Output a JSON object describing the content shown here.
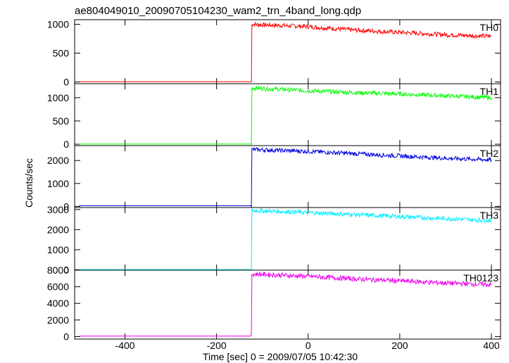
{
  "chart_data": {
    "type": "line",
    "title": "ae804049010_20090705104230_wam2_trn_4band_long.qdp",
    "xlabel": "Time [sec] 0 = 2009/07/05 10:42:30",
    "ylabel": "Counts/sec",
    "xlim": [
      -510,
      420
    ],
    "x_ticks": [
      -400,
      -200,
      0,
      200,
      400
    ],
    "grid": false,
    "panels": [
      {
        "name": "TH0",
        "color": "#ff0000",
        "ylim": [
          -30,
          1080
        ],
        "y_ticks": [
          0,
          500,
          1000
        ],
        "x": [
          -500,
          -124,
          -123,
          0,
          100,
          200,
          300,
          400
        ],
        "values": [
          5,
          5,
          1000,
          960,
          900,
          860,
          820,
          790
        ]
      },
      {
        "name": "TH1",
        "color": "#00ff00",
        "ylim": [
          -30,
          1300
        ],
        "y_ticks": [
          0,
          500,
          1000
        ],
        "x": [
          -500,
          -124,
          -123,
          0,
          100,
          200,
          300,
          400
        ],
        "values": [
          5,
          5,
          1210,
          1150,
          1110,
          1080,
          1040,
          1000
        ],
        "series_noise": 40
      },
      {
        "name": "TH2",
        "color": "#0000dd",
        "ylim": [
          -50,
          2650
        ],
        "y_ticks": [
          0,
          1000,
          2000
        ],
        "x": [
          -500,
          -124,
          -123,
          0,
          100,
          200,
          300,
          400
        ],
        "values": [
          30,
          30,
          2480,
          2400,
          2300,
          2200,
          2100,
          2030
        ]
      },
      {
        "name": "TH3",
        "color": "#00eeff",
        "ylim": [
          -20,
          3100
        ],
        "y_ticks": [
          0,
          1000,
          2000,
          3000
        ],
        "x": [
          -500,
          -124,
          -123,
          0,
          100,
          200,
          300,
          400
        ],
        "values": [
          5,
          5,
          2950,
          2850,
          2750,
          2650,
          2550,
          2450
        ]
      },
      {
        "name": "TH0123",
        "color": "#ee00ee",
        "ylim": [
          -300,
          8000
        ],
        "y_ticks": [
          0,
          2000,
          4000,
          6000,
          8000
        ],
        "x": [
          -500,
          -124,
          -123,
          0,
          100,
          200,
          300,
          400
        ],
        "values": [
          60,
          60,
          7550,
          7250,
          6950,
          6700,
          6450,
          6250
        ]
      }
    ]
  }
}
